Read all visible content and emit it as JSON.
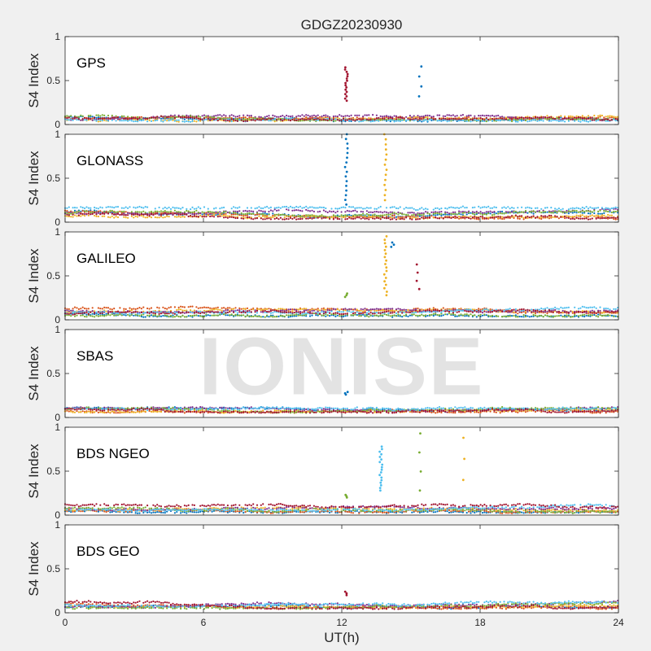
{
  "figure": {
    "title": "GDGZ20230930",
    "xlabel": "UT(h)",
    "watermark": "IONISE",
    "background": "#f0f0f0",
    "axes_background": "#ffffff",
    "colors": [
      "#0072bd",
      "#d95319",
      "#edb120",
      "#7e2f8e",
      "#77ac30",
      "#4dbeee",
      "#a2142f"
    ]
  },
  "chart_data": [
    {
      "type": "scatter",
      "panel_label": "GPS",
      "ylabel": "S4 Index",
      "xlim": [
        0,
        24
      ],
      "ylim": [
        0,
        1
      ],
      "xticks": [
        0,
        6,
        12,
        18,
        24
      ],
      "xticklabels": [],
      "yticks": [
        0,
        0.5,
        1
      ],
      "yticklabels": [
        "0",
        "0.5",
        "1"
      ],
      "baseline_range": [
        0.04,
        0.1
      ],
      "spikes": [
        {
          "x": 12.2,
          "y_min": 0.27,
          "y_max": 0.65,
          "n": 16,
          "color": "#a2142f"
        },
        {
          "x": 15.4,
          "y_min": 0.32,
          "y_max": 0.66,
          "n": 4,
          "color": "#0072bd"
        }
      ]
    },
    {
      "type": "scatter",
      "panel_label": "GLONASS",
      "ylabel": "S4 Index",
      "xlim": [
        0,
        24
      ],
      "ylim": [
        0,
        1
      ],
      "xticks": [
        0,
        6,
        12,
        18,
        24
      ],
      "xticklabels": [],
      "yticks": [
        0,
        0.5,
        1
      ],
      "yticklabels": [
        "0",
        "0.5",
        "1"
      ],
      "baseline_range": [
        0.04,
        0.17
      ],
      "spikes": [
        {
          "x": 12.2,
          "y_min": 0.2,
          "y_max": 1.0,
          "n": 16,
          "color": "#0072bd"
        },
        {
          "x": 13.9,
          "y_min": 0.25,
          "y_max": 1.0,
          "n": 14,
          "color": "#edb120"
        }
      ]
    },
    {
      "type": "scatter",
      "panel_label": "GALILEO",
      "ylabel": "S4 Index",
      "xlim": [
        0,
        24
      ],
      "ylim": [
        0,
        1
      ],
      "xticks": [
        0,
        6,
        12,
        18,
        24
      ],
      "xticklabels": [],
      "yticks": [
        0,
        0.5,
        1
      ],
      "yticklabels": [
        "0",
        "0.5",
        "1"
      ],
      "baseline_range": [
        0.04,
        0.15
      ],
      "spikes": [
        {
          "x": 12.2,
          "y_min": 0.26,
          "y_max": 0.3,
          "n": 3,
          "color": "#77ac30"
        },
        {
          "x": 13.9,
          "y_min": 0.28,
          "y_max": 0.95,
          "n": 18,
          "color": "#edb120"
        },
        {
          "x": 14.2,
          "y_min": 0.83,
          "y_max": 0.88,
          "n": 3,
          "color": "#0072bd"
        },
        {
          "x": 15.3,
          "y_min": 0.35,
          "y_max": 0.63,
          "n": 4,
          "color": "#a2142f"
        }
      ]
    },
    {
      "type": "scatter",
      "panel_label": "SBAS",
      "ylabel": "S4 Index",
      "xlim": [
        0,
        24
      ],
      "ylim": [
        0,
        1
      ],
      "xticks": [
        0,
        6,
        12,
        18,
        24
      ],
      "xticklabels": [],
      "yticks": [
        0,
        0.5,
        1
      ],
      "yticklabels": [
        "0",
        "0.5",
        "1"
      ],
      "baseline_range": [
        0.06,
        0.11
      ],
      "spikes": [
        {
          "x": 12.2,
          "y_min": 0.26,
          "y_max": 0.29,
          "n": 3,
          "color": "#0072bd"
        }
      ]
    },
    {
      "type": "scatter",
      "panel_label": "BDS NGEO",
      "ylabel": "S4 Index",
      "xlim": [
        0,
        24
      ],
      "ylim": [
        0,
        1
      ],
      "xticks": [
        0,
        6,
        12,
        18,
        24
      ],
      "xticklabels": [],
      "yticks": [
        0,
        0.5,
        1
      ],
      "yticklabels": [
        "0",
        "0.5",
        "1"
      ],
      "baseline_range": [
        0.03,
        0.12
      ],
      "spikes": [
        {
          "x": 12.2,
          "y_min": 0.2,
          "y_max": 0.23,
          "n": 3,
          "color": "#77ac30"
        },
        {
          "x": 13.7,
          "y_min": 0.28,
          "y_max": 0.78,
          "n": 18,
          "color": "#4dbeee"
        },
        {
          "x": 15.4,
          "y_min": 0.28,
          "y_max": 0.93,
          "n": 4,
          "color": "#77ac30"
        },
        {
          "x": 17.3,
          "y_min": 0.4,
          "y_max": 0.88,
          "n": 3,
          "color": "#edb120"
        }
      ]
    },
    {
      "type": "scatter",
      "panel_label": "BDS GEO",
      "ylabel": "S4 Index",
      "xlim": [
        0,
        24
      ],
      "ylim": [
        0,
        1
      ],
      "xticks": [
        0,
        6,
        12,
        18,
        24
      ],
      "xticklabels": [
        "0",
        "6",
        "12",
        "18",
        "24"
      ],
      "yticks": [
        0,
        0.5,
        1
      ],
      "yticklabels": [
        "0",
        "0.5",
        "1"
      ],
      "baseline_range": [
        0.05,
        0.13
      ],
      "spikes": [
        {
          "x": 12.2,
          "y_min": 0.2,
          "y_max": 0.24,
          "n": 3,
          "color": "#a2142f"
        }
      ]
    }
  ]
}
